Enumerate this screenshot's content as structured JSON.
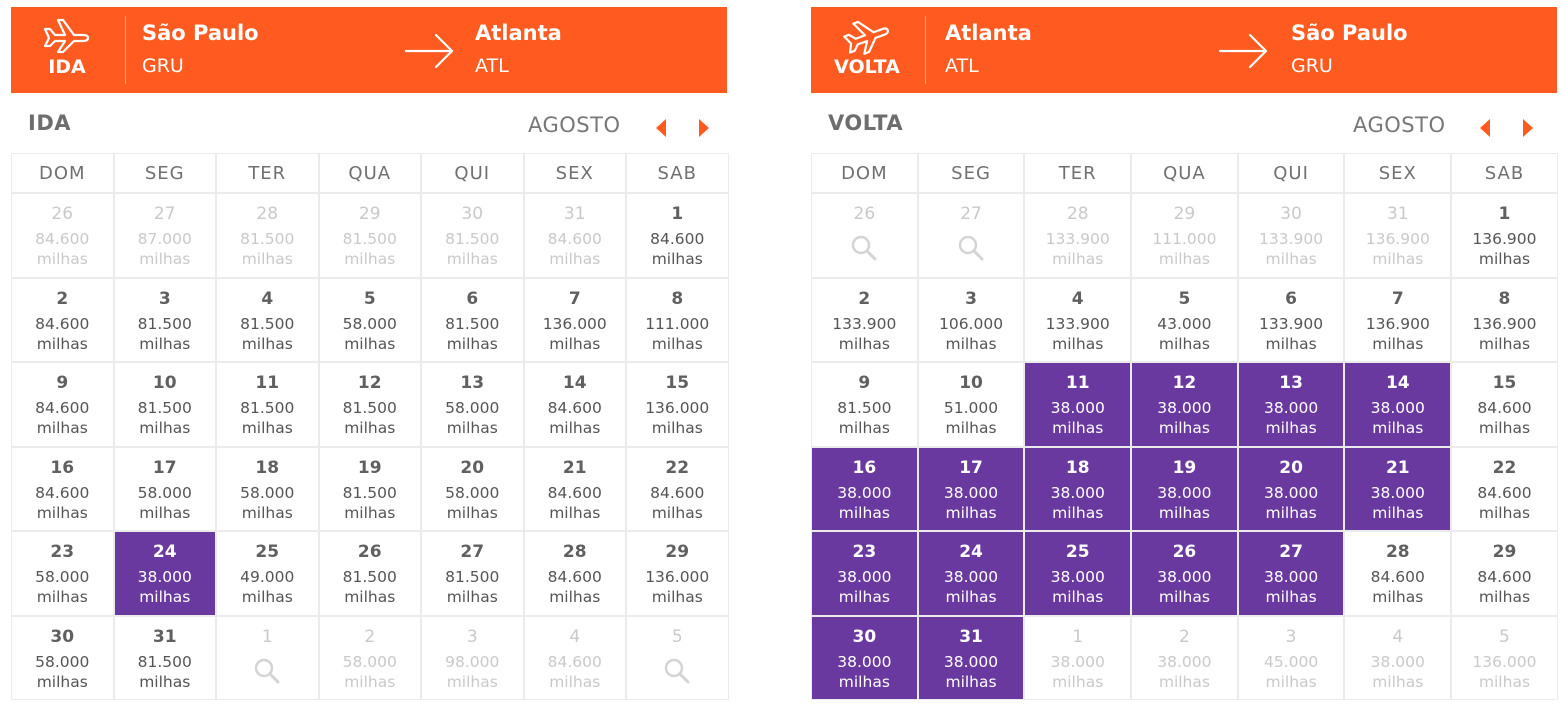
{
  "colors": {
    "brand": "#ff5a1f",
    "highlight": "#6a39a0",
    "muted": "#c9c9c9"
  },
  "weekdays": [
    "DOM",
    "SEG",
    "TER",
    "QUA",
    "QUI",
    "SEX",
    "SAB"
  ],
  "outbound": {
    "direction": "IDA",
    "icon": "plane-takeoff-icon",
    "origin": {
      "city": "São Paulo",
      "code": "GRU"
    },
    "destination": {
      "city": "Atlanta",
      "code": "ATL"
    },
    "calendar_title": "IDA",
    "month": "AGOSTO",
    "days": [
      {
        "day": "26",
        "price": "84.600",
        "unit": "milhas",
        "muted": true
      },
      {
        "day": "27",
        "price": "87.000",
        "unit": "milhas",
        "muted": true
      },
      {
        "day": "28",
        "price": "81.500",
        "unit": "milhas",
        "muted": true
      },
      {
        "day": "29",
        "price": "81.500",
        "unit": "milhas",
        "muted": true
      },
      {
        "day": "30",
        "price": "81.500",
        "unit": "milhas",
        "muted": true
      },
      {
        "day": "31",
        "price": "84.600",
        "unit": "milhas",
        "muted": true
      },
      {
        "day": "1",
        "price": "84.600",
        "unit": "milhas"
      },
      {
        "day": "2",
        "price": "84.600",
        "unit": "milhas"
      },
      {
        "day": "3",
        "price": "81.500",
        "unit": "milhas"
      },
      {
        "day": "4",
        "price": "81.500",
        "unit": "milhas"
      },
      {
        "day": "5",
        "price": "58.000",
        "unit": "milhas"
      },
      {
        "day": "6",
        "price": "81.500",
        "unit": "milhas"
      },
      {
        "day": "7",
        "price": "136.000",
        "unit": "milhas"
      },
      {
        "day": "8",
        "price": "111.000",
        "unit": "milhas"
      },
      {
        "day": "9",
        "price": "84.600",
        "unit": "milhas"
      },
      {
        "day": "10",
        "price": "81.500",
        "unit": "milhas"
      },
      {
        "day": "11",
        "price": "81.500",
        "unit": "milhas"
      },
      {
        "day": "12",
        "price": "81.500",
        "unit": "milhas"
      },
      {
        "day": "13",
        "price": "58.000",
        "unit": "milhas"
      },
      {
        "day": "14",
        "price": "84.600",
        "unit": "milhas"
      },
      {
        "day": "15",
        "price": "136.000",
        "unit": "milhas"
      },
      {
        "day": "16",
        "price": "84.600",
        "unit": "milhas"
      },
      {
        "day": "17",
        "price": "58.000",
        "unit": "milhas"
      },
      {
        "day": "18",
        "price": "58.000",
        "unit": "milhas"
      },
      {
        "day": "19",
        "price": "81.500",
        "unit": "milhas"
      },
      {
        "day": "20",
        "price": "58.000",
        "unit": "milhas"
      },
      {
        "day": "21",
        "price": "84.600",
        "unit": "milhas"
      },
      {
        "day": "22",
        "price": "84.600",
        "unit": "milhas"
      },
      {
        "day": "23",
        "price": "58.000",
        "unit": "milhas"
      },
      {
        "day": "24",
        "price": "38.000",
        "unit": "milhas",
        "highlight": true
      },
      {
        "day": "25",
        "price": "49.000",
        "unit": "milhas"
      },
      {
        "day": "26",
        "price": "81.500",
        "unit": "milhas"
      },
      {
        "day": "27",
        "price": "81.500",
        "unit": "milhas"
      },
      {
        "day": "28",
        "price": "84.600",
        "unit": "milhas"
      },
      {
        "day": "29",
        "price": "136.000",
        "unit": "milhas"
      },
      {
        "day": "30",
        "price": "58.000",
        "unit": "milhas"
      },
      {
        "day": "31",
        "price": "81.500",
        "unit": "milhas"
      },
      {
        "day": "1",
        "search": true,
        "muted": true
      },
      {
        "day": "2",
        "price": "58.000",
        "unit": "milhas",
        "muted": true
      },
      {
        "day": "3",
        "price": "98.000",
        "unit": "milhas",
        "muted": true
      },
      {
        "day": "4",
        "price": "84.600",
        "unit": "milhas",
        "muted": true
      },
      {
        "day": "5",
        "search": true,
        "muted": true
      }
    ]
  },
  "inbound": {
    "direction": "VOLTA",
    "icon": "plane-landing-icon",
    "origin": {
      "city": "Atlanta",
      "code": "ATL"
    },
    "destination": {
      "city": "São Paulo",
      "code": "GRU"
    },
    "calendar_title": "VOLTA",
    "month": "AGOSTO",
    "days": [
      {
        "day": "26",
        "search": true,
        "muted": true
      },
      {
        "day": "27",
        "search": true,
        "muted": true
      },
      {
        "day": "28",
        "price": "133.900",
        "unit": "milhas",
        "muted": true
      },
      {
        "day": "29",
        "price": "111.000",
        "unit": "milhas",
        "muted": true
      },
      {
        "day": "30",
        "price": "133.900",
        "unit": "milhas",
        "muted": true
      },
      {
        "day": "31",
        "price": "136.900",
        "unit": "milhas",
        "muted": true
      },
      {
        "day": "1",
        "price": "136.900",
        "unit": "milhas"
      },
      {
        "day": "2",
        "price": "133.900",
        "unit": "milhas"
      },
      {
        "day": "3",
        "price": "106.000",
        "unit": "milhas"
      },
      {
        "day": "4",
        "price": "133.900",
        "unit": "milhas"
      },
      {
        "day": "5",
        "price": "43.000",
        "unit": "milhas"
      },
      {
        "day": "6",
        "price": "133.900",
        "unit": "milhas"
      },
      {
        "day": "7",
        "price": "136.900",
        "unit": "milhas"
      },
      {
        "day": "8",
        "price": "136.900",
        "unit": "milhas"
      },
      {
        "day": "9",
        "price": "81.500",
        "unit": "milhas"
      },
      {
        "day": "10",
        "price": "51.000",
        "unit": "milhas"
      },
      {
        "day": "11",
        "price": "38.000",
        "unit": "milhas",
        "highlight": true
      },
      {
        "day": "12",
        "price": "38.000",
        "unit": "milhas",
        "highlight": true
      },
      {
        "day": "13",
        "price": "38.000",
        "unit": "milhas",
        "highlight": true
      },
      {
        "day": "14",
        "price": "38.000",
        "unit": "milhas",
        "highlight": true
      },
      {
        "day": "15",
        "price": "84.600",
        "unit": "milhas"
      },
      {
        "day": "16",
        "price": "38.000",
        "unit": "milhas",
        "highlight": true
      },
      {
        "day": "17",
        "price": "38.000",
        "unit": "milhas",
        "highlight": true
      },
      {
        "day": "18",
        "price": "38.000",
        "unit": "milhas",
        "highlight": true
      },
      {
        "day": "19",
        "price": "38.000",
        "unit": "milhas",
        "highlight": true
      },
      {
        "day": "20",
        "price": "38.000",
        "unit": "milhas",
        "highlight": true
      },
      {
        "day": "21",
        "price": "38.000",
        "unit": "milhas",
        "highlight": true
      },
      {
        "day": "22",
        "price": "84.600",
        "unit": "milhas"
      },
      {
        "day": "23",
        "price": "38.000",
        "unit": "milhas",
        "highlight": true
      },
      {
        "day": "24",
        "price": "38.000",
        "unit": "milhas",
        "highlight": true
      },
      {
        "day": "25",
        "price": "38.000",
        "unit": "milhas",
        "highlight": true
      },
      {
        "day": "26",
        "price": "38.000",
        "unit": "milhas",
        "highlight": true
      },
      {
        "day": "27",
        "price": "38.000",
        "unit": "milhas",
        "highlight": true
      },
      {
        "day": "28",
        "price": "84.600",
        "unit": "milhas"
      },
      {
        "day": "29",
        "price": "84.600",
        "unit": "milhas"
      },
      {
        "day": "30",
        "price": "38.000",
        "unit": "milhas",
        "highlight": true
      },
      {
        "day": "31",
        "price": "38.000",
        "unit": "milhas",
        "highlight": true
      },
      {
        "day": "1",
        "price": "38.000",
        "unit": "milhas",
        "muted": true
      },
      {
        "day": "2",
        "price": "38.000",
        "unit": "milhas",
        "muted": true
      },
      {
        "day": "3",
        "price": "45.000",
        "unit": "milhas",
        "muted": true
      },
      {
        "day": "4",
        "price": "38.000",
        "unit": "milhas",
        "muted": true
      },
      {
        "day": "5",
        "price": "136.000",
        "unit": "milhas",
        "muted": true
      }
    ]
  }
}
